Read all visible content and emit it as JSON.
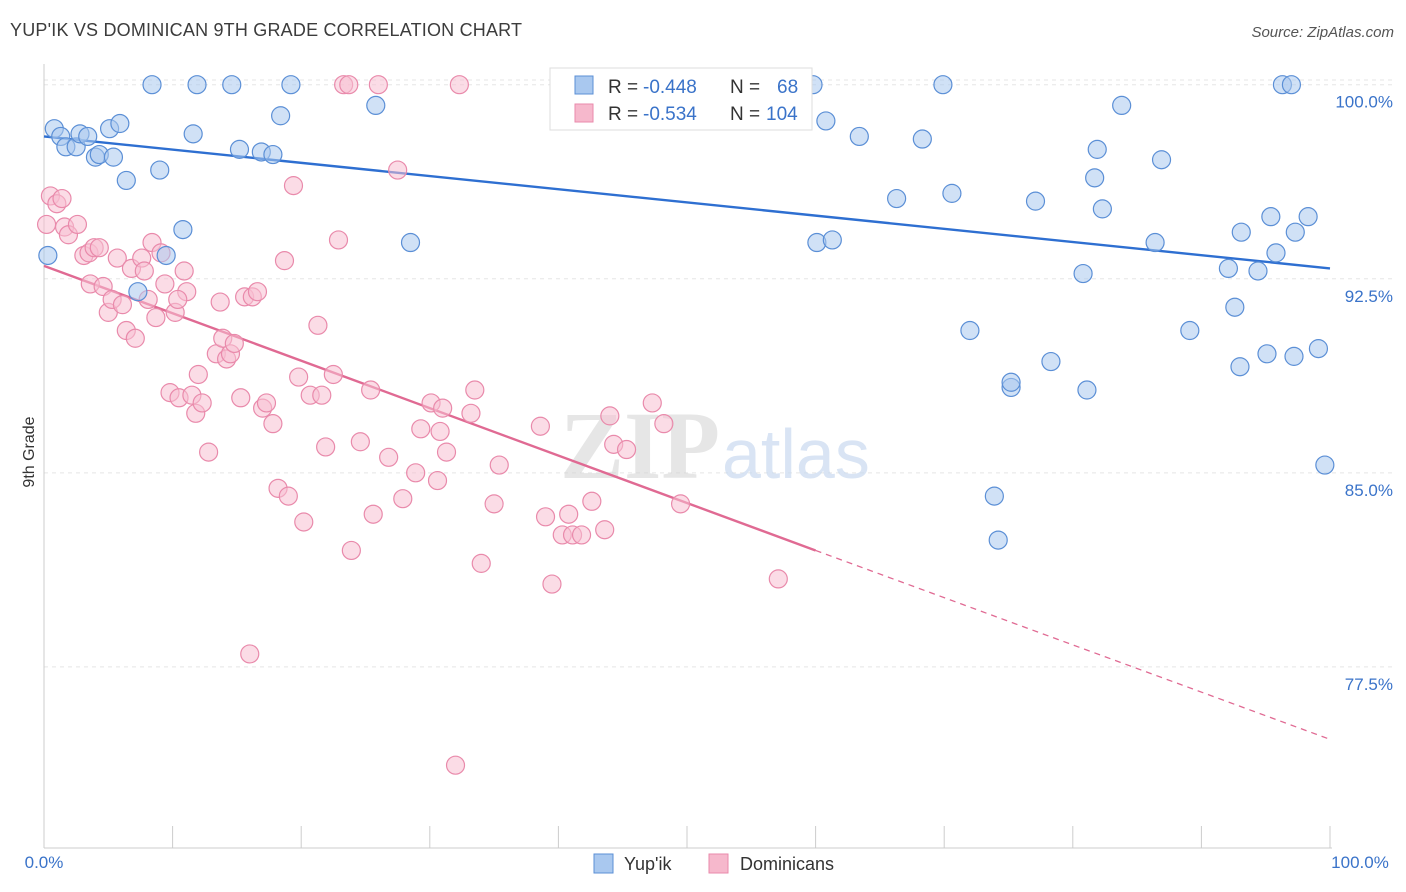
{
  "header": {
    "title": "YUP'IK VS DOMINICAN 9TH GRADE CORRELATION CHART",
    "source": "Source: ZipAtlas.com"
  },
  "watermark": {
    "part1": "ZIP",
    "part2": "atlas"
  },
  "stats_box": {
    "rows": [
      {
        "r_label": "R = ",
        "r_value": "-0.448",
        "n_label": "N = ",
        "n_value": "68",
        "color": "#a9c8ef"
      },
      {
        "r_label": "R = ",
        "r_value": "-0.534",
        "n_label": "N = ",
        "n_value": "104",
        "color": "#f6b8cc"
      }
    ]
  },
  "legend": {
    "items": [
      {
        "label": "Yup'ik",
        "color": "#a9c8ef"
      },
      {
        "label": "Dominicans",
        "color": "#f6b8cc"
      }
    ]
  },
  "colors": {
    "blue_point_fill": "#a9c8ef",
    "blue_point_stroke": "#5b8fd6",
    "blue_line": "#2e6fd1",
    "pink_point_fill": "#f7c0d2",
    "pink_point_stroke": "#e98aab",
    "pink_line": "#e06a93",
    "value_text": "#3a73c9",
    "grid": "#e5e5e5"
  },
  "chart_data": {
    "type": "scatter",
    "title": "YUP'IK VS DOMINICAN 9TH GRADE CORRELATION CHART",
    "xlabel": "",
    "ylabel": "9th Grade",
    "xlim": [
      0,
      100
    ],
    "ylim": [
      70.5,
      100.8
    ],
    "x_tick_labels": [
      "0.0%",
      "100.0%"
    ],
    "y_ticks": [
      77.5,
      85.0,
      92.5,
      100.0
    ],
    "y_tick_labels": [
      "77.5%",
      "85.0%",
      "92.5%",
      "100.0%"
    ],
    "grid": "horizontal dashed",
    "legend_position": "bottom-center",
    "series": [
      {
        "name": "Yup'ik",
        "r": -0.448,
        "n": 68,
        "trend": {
          "x0": 0,
          "y0": 98.0,
          "x1": 100,
          "y1": 92.9
        },
        "points": [
          [
            0.3,
            93.4
          ],
          [
            0.8,
            98.3
          ],
          [
            1.3,
            98.0
          ],
          [
            1.7,
            97.6
          ],
          [
            2.5,
            97.6
          ],
          [
            2.8,
            98.1
          ],
          [
            3.4,
            98.0
          ],
          [
            4.0,
            97.2
          ],
          [
            4.3,
            97.3
          ],
          [
            5.1,
            98.3
          ],
          [
            5.4,
            97.2
          ],
          [
            5.9,
            98.5
          ],
          [
            6.4,
            96.3
          ],
          [
            7.3,
            92.0
          ],
          [
            8.4,
            100.0
          ],
          [
            9.0,
            96.7
          ],
          [
            9.5,
            93.4
          ],
          [
            10.8,
            94.4
          ],
          [
            11.6,
            98.1
          ],
          [
            11.9,
            100.0
          ],
          [
            14.6,
            100.0
          ],
          [
            15.2,
            97.5
          ],
          [
            16.9,
            97.4
          ],
          [
            17.8,
            97.3
          ],
          [
            18.4,
            98.8
          ],
          [
            19.2,
            100.0
          ],
          [
            25.8,
            99.2
          ],
          [
            28.5,
            93.9
          ],
          [
            59.8,
            100.0
          ],
          [
            60.8,
            98.6
          ],
          [
            60.1,
            93.9
          ],
          [
            61.3,
            94.0
          ],
          [
            63.4,
            98.0
          ],
          [
            66.3,
            95.6
          ],
          [
            68.3,
            97.9
          ],
          [
            69.9,
            100.0
          ],
          [
            70.6,
            95.8
          ],
          [
            72.0,
            90.5
          ],
          [
            74.2,
            82.4
          ],
          [
            75.2,
            88.3
          ],
          [
            73.9,
            84.1
          ],
          [
            75.2,
            88.5
          ],
          [
            77.1,
            95.5
          ],
          [
            78.3,
            89.3
          ],
          [
            80.8,
            92.7
          ],
          [
            81.1,
            88.2
          ],
          [
            81.7,
            96.4
          ],
          [
            81.9,
            97.5
          ],
          [
            82.3,
            95.2
          ],
          [
            83.8,
            99.2
          ],
          [
            86.4,
            93.9
          ],
          [
            86.9,
            97.1
          ],
          [
            89.1,
            90.5
          ],
          [
            92.1,
            92.9
          ],
          [
            92.6,
            91.4
          ],
          [
            93.0,
            89.1
          ],
          [
            93.1,
            94.3
          ],
          [
            94.4,
            92.8
          ],
          [
            95.1,
            89.6
          ],
          [
            95.8,
            93.5
          ],
          [
            96.3,
            100.0
          ],
          [
            97.0,
            100.0
          ],
          [
            97.3,
            94.3
          ],
          [
            98.3,
            94.9
          ],
          [
            99.1,
            89.8
          ],
          [
            99.6,
            85.3
          ],
          [
            95.4,
            94.9
          ],
          [
            97.2,
            89.5
          ]
        ]
      },
      {
        "name": "Dominicans",
        "r": -0.534,
        "n": 104,
        "trend": {
          "x0": 0,
          "y0": 93.0,
          "x1": 60,
          "y1": 82.0,
          "dashed_to": {
            "x": 100,
            "y": 74.7
          }
        },
        "points": [
          [
            0.5,
            95.7
          ],
          [
            1.0,
            95.4
          ],
          [
            1.4,
            95.6
          ],
          [
            1.6,
            94.5
          ],
          [
            1.9,
            94.2
          ],
          [
            2.6,
            94.6
          ],
          [
            3.1,
            93.4
          ],
          [
            3.5,
            93.5
          ],
          [
            3.6,
            92.3
          ],
          [
            3.9,
            93.7
          ],
          [
            4.3,
            93.7
          ],
          [
            4.6,
            92.2
          ],
          [
            5.0,
            91.2
          ],
          [
            5.3,
            91.7
          ],
          [
            5.7,
            93.3
          ],
          [
            6.1,
            91.5
          ],
          [
            6.4,
            90.5
          ],
          [
            6.8,
            92.9
          ],
          [
            7.1,
            90.2
          ],
          [
            7.6,
            93.3
          ],
          [
            7.8,
            92.8
          ],
          [
            8.1,
            91.7
          ],
          [
            8.4,
            93.9
          ],
          [
            8.7,
            91.0
          ],
          [
            9.1,
            93.5
          ],
          [
            9.4,
            92.3
          ],
          [
            9.8,
            88.1
          ],
          [
            10.2,
            91.2
          ],
          [
            10.5,
            87.9
          ],
          [
            10.9,
            92.8
          ],
          [
            11.1,
            92.0
          ],
          [
            11.5,
            88.0
          ],
          [
            11.8,
            87.3
          ],
          [
            12.0,
            88.8
          ],
          [
            12.3,
            87.7
          ],
          [
            12.8,
            85.8
          ],
          [
            13.4,
            89.6
          ],
          [
            13.7,
            91.6
          ],
          [
            13.9,
            90.2
          ],
          [
            14.2,
            89.4
          ],
          [
            14.5,
            89.6
          ],
          [
            14.8,
            90.0
          ],
          [
            15.3,
            87.9
          ],
          [
            15.6,
            91.8
          ],
          [
            16.2,
            91.8
          ],
          [
            16.6,
            92.0
          ],
          [
            17.0,
            87.5
          ],
          [
            17.3,
            87.7
          ],
          [
            17.8,
            86.9
          ],
          [
            18.2,
            84.4
          ],
          [
            18.7,
            93.2
          ],
          [
            19.0,
            84.1
          ],
          [
            19.4,
            96.1
          ],
          [
            19.8,
            88.7
          ],
          [
            20.2,
            83.1
          ],
          [
            20.7,
            88.0
          ],
          [
            21.3,
            90.7
          ],
          [
            21.6,
            88.0
          ],
          [
            21.9,
            86.0
          ],
          [
            22.5,
            88.8
          ],
          [
            22.9,
            94.0
          ],
          [
            23.3,
            100.0
          ],
          [
            23.7,
            100.0
          ],
          [
            23.9,
            82.0
          ],
          [
            24.6,
            86.2
          ],
          [
            25.4,
            88.2
          ],
          [
            25.6,
            83.4
          ],
          [
            26.0,
            100.0
          ],
          [
            26.8,
            85.6
          ],
          [
            27.5,
            96.7
          ],
          [
            27.9,
            84.0
          ],
          [
            28.9,
            85.0
          ],
          [
            29.3,
            86.7
          ],
          [
            30.1,
            87.7
          ],
          [
            30.6,
            84.7
          ],
          [
            31.0,
            87.5
          ],
          [
            31.3,
            85.8
          ],
          [
            32.3,
            100.0
          ],
          [
            33.2,
            87.3
          ],
          [
            33.5,
            88.2
          ],
          [
            34.0,
            81.5
          ],
          [
            35.0,
            83.8
          ],
          [
            35.4,
            85.3
          ],
          [
            38.6,
            86.8
          ],
          [
            39.0,
            83.3
          ],
          [
            39.5,
            80.7
          ],
          [
            40.3,
            82.6
          ],
          [
            40.8,
            83.4
          ],
          [
            41.1,
            82.6
          ],
          [
            41.8,
            82.6
          ],
          [
            42.6,
            83.9
          ],
          [
            43.6,
            82.8
          ],
          [
            44.0,
            87.2
          ],
          [
            44.3,
            86.1
          ],
          [
            45.3,
            85.9
          ],
          [
            47.3,
            87.7
          ],
          [
            48.2,
            86.9
          ],
          [
            49.5,
            83.8
          ],
          [
            57.1,
            80.9
          ],
          [
            30.8,
            86.6
          ],
          [
            32.0,
            73.7
          ],
          [
            16.0,
            78.0
          ],
          [
            0.2,
            94.6
          ],
          [
            10.4,
            91.7
          ]
        ]
      }
    ]
  }
}
